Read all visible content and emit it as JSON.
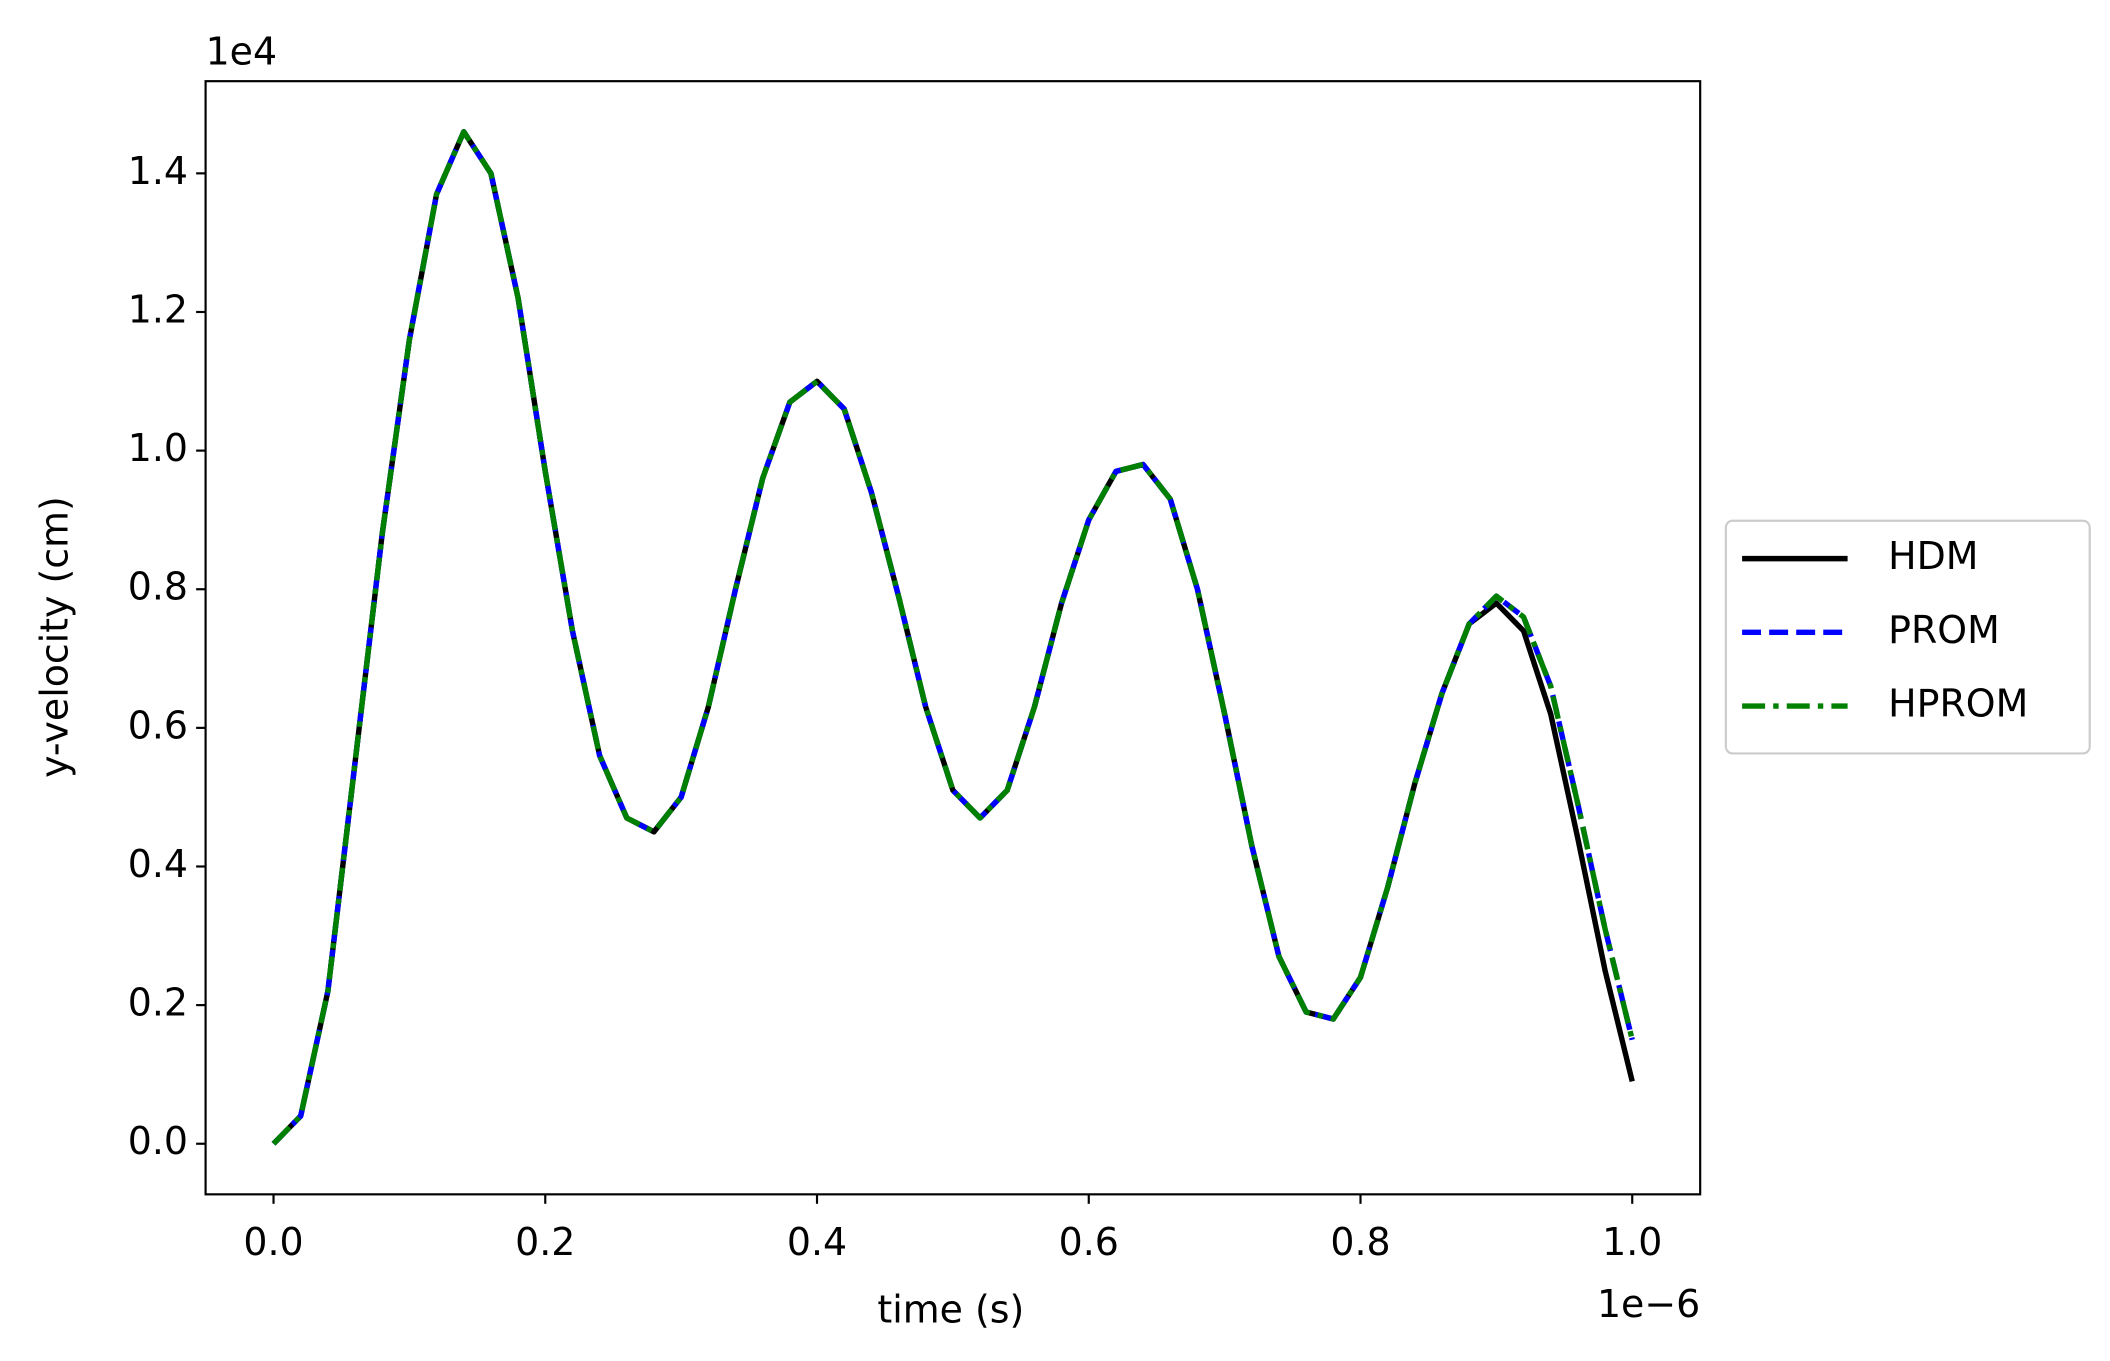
{
  "chart_data": {
    "type": "line",
    "x_label": "time (s)",
    "y_label": "y-velocity (cm)",
    "x_offset_label": "1e−6",
    "y_offset_label": "1e4",
    "x": [
      0,
      0.02,
      0.04,
      0.06,
      0.08,
      0.1,
      0.12,
      0.14,
      0.16,
      0.18,
      0.2,
      0.22,
      0.24,
      0.26,
      0.28,
      0.3,
      0.32,
      0.34,
      0.36,
      0.38,
      0.4,
      0.42,
      0.44,
      0.46,
      0.48,
      0.5,
      0.52,
      0.54,
      0.56,
      0.58,
      0.6,
      0.62,
      0.64,
      0.66,
      0.68,
      0.7,
      0.72,
      0.74,
      0.76,
      0.78,
      0.8,
      0.82,
      0.84,
      0.86,
      0.88,
      0.9,
      0.92,
      0.94,
      0.96,
      0.98,
      1.0
    ],
    "series": [
      {
        "name": "HDM",
        "color": "#000000",
        "dash": "solid",
        "values": [
          0,
          0.04,
          0.22,
          0.55,
          0.88,
          1.16,
          1.37,
          1.46,
          1.4,
          1.22,
          0.97,
          0.74,
          0.56,
          0.47,
          0.45,
          0.5,
          0.63,
          0.8,
          0.96,
          1.07,
          1.1,
          1.06,
          0.94,
          0.79,
          0.63,
          0.51,
          0.47,
          0.51,
          0.63,
          0.78,
          0.9,
          0.97,
          0.98,
          0.93,
          0.8,
          0.62,
          0.43,
          0.27,
          0.19,
          0.18,
          0.24,
          0.37,
          0.52,
          0.65,
          0.75,
          0.78,
          0.74,
          0.62,
          0.44,
          0.25,
          0.09
        ]
      },
      {
        "name": "PROM",
        "color": "#0000ff",
        "dash": "dashed",
        "values": [
          0,
          0.04,
          0.22,
          0.55,
          0.88,
          1.16,
          1.37,
          1.46,
          1.4,
          1.22,
          0.97,
          0.74,
          0.56,
          0.47,
          0.45,
          0.5,
          0.63,
          0.8,
          0.96,
          1.07,
          1.1,
          1.06,
          0.94,
          0.79,
          0.63,
          0.51,
          0.47,
          0.51,
          0.63,
          0.78,
          0.9,
          0.97,
          0.98,
          0.93,
          0.8,
          0.62,
          0.43,
          0.27,
          0.19,
          0.18,
          0.24,
          0.37,
          0.52,
          0.65,
          0.75,
          0.79,
          0.76,
          0.66,
          0.49,
          0.31,
          0.15
        ]
      },
      {
        "name": "HPROM",
        "color": "#008000",
        "dash": "dashdot",
        "values": [
          0,
          0.04,
          0.22,
          0.55,
          0.88,
          1.16,
          1.37,
          1.46,
          1.4,
          1.22,
          0.97,
          0.74,
          0.56,
          0.47,
          0.45,
          0.5,
          0.63,
          0.8,
          0.96,
          1.07,
          1.1,
          1.06,
          0.94,
          0.79,
          0.63,
          0.51,
          0.47,
          0.51,
          0.63,
          0.78,
          0.9,
          0.97,
          0.98,
          0.93,
          0.8,
          0.62,
          0.43,
          0.27,
          0.19,
          0.18,
          0.24,
          0.37,
          0.52,
          0.65,
          0.75,
          0.79,
          0.76,
          0.66,
          0.49,
          0.31,
          0.15
        ]
      }
    ],
    "xlim": [
      -0.05,
      1.05
    ],
    "ylim": [
      -0.073,
      1.533
    ],
    "xticks": [
      {
        "value": 0,
        "label": "0.0"
      },
      0.2,
      0.4,
      0.6,
      0.8,
      {
        "value": 1,
        "label": "1.0"
      }
    ],
    "yticks": [
      {
        "value": 0,
        "label": "0.0"
      },
      0.2,
      0.4,
      0.6,
      0.8,
      {
        "value": 1,
        "label": "1.0"
      },
      1.2,
      1.4
    ],
    "grid": false,
    "legend": "outside right"
  }
}
